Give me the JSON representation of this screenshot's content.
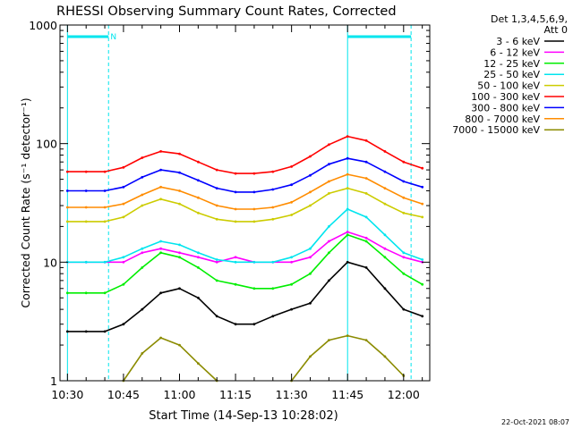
{
  "colors": {
    "background": "#ffffff",
    "axis": "#000000",
    "marker": "#00e5ee"
  },
  "chart_data": {
    "type": "line",
    "title": "RHESSI Observing Summary Count Rates, Corrected",
    "xlabel": "Start Time (14-Sep-13 10:28:02)",
    "ylabel": "Corrected Count Rate (s⁻¹ detector⁻¹)",
    "yscale": "log",
    "ylim": [
      1,
      1000
    ],
    "xlim_minutes": [
      -2,
      97
    ],
    "x_ticks": [
      {
        "label": "10:30",
        "minutes": 0
      },
      {
        "label": "10:45",
        "minutes": 15
      },
      {
        "label": "11:00",
        "minutes": 30
      },
      {
        "label": "11:15",
        "minutes": 45
      },
      {
        "label": "11:30",
        "minutes": 60
      },
      {
        "label": "11:45",
        "minutes": 75
      },
      {
        "label": "12:00",
        "minutes": 90
      }
    ],
    "y_ticks": [
      {
        "label": "1",
        "value": 1
      },
      {
        "label": "10",
        "value": 10
      },
      {
        "label": "100",
        "value": 100
      },
      {
        "label": "1000",
        "value": 1000
      }
    ],
    "legend_header": [
      "Det 1,3,4,5,6,9,",
      "Att 0"
    ],
    "legend_position": "right",
    "annotations": [
      {
        "type": "bar",
        "text": "",
        "x_start": 0,
        "x_end": 11
      },
      {
        "type": "marker",
        "text": "N",
        "x": 11.5
      },
      {
        "type": "bar",
        "text": "",
        "x_start": 75,
        "x_end": 92
      }
    ],
    "markers": {
      "solid_vlines_minutes": [
        0,
        75
      ],
      "dashed_vlines_minutes": [
        11,
        92
      ]
    },
    "time_minutes": [
      0,
      5,
      10,
      15,
      20,
      25,
      30,
      35,
      40,
      45,
      50,
      55,
      60,
      65,
      70,
      75,
      80,
      85,
      90,
      95
    ],
    "series": [
      {
        "name": "3 - 6 keV",
        "color": "#000000",
        "values": [
          2.6,
          2.6,
          2.6,
          3,
          4,
          5.5,
          6,
          5,
          3.5,
          3,
          3,
          3.5,
          4,
          4.5,
          7,
          10,
          9,
          6,
          4,
          3.5
        ]
      },
      {
        "name": "6 - 12 keV",
        "color": "#ff00ff",
        "values": [
          10,
          10,
          10,
          10,
          12,
          13,
          12,
          11,
          10,
          11,
          10,
          10,
          10,
          11,
          15,
          18,
          16,
          13,
          11,
          10
        ]
      },
      {
        "name": "12 - 25 keV",
        "color": "#00ee00",
        "values": [
          5.5,
          5.5,
          5.5,
          6.5,
          9,
          12,
          11,
          9,
          7,
          6.5,
          6,
          6,
          6.5,
          8,
          12,
          17,
          15,
          11,
          8,
          6.5
        ]
      },
      {
        "name": "25 - 50 keV",
        "color": "#00e5ee",
        "values": [
          10,
          10,
          10,
          11,
          13,
          15,
          14,
          12,
          10.5,
          10,
          10,
          10,
          11,
          13,
          20,
          28,
          24,
          17,
          12,
          10.5
        ]
      },
      {
        "name": "50 - 100 keV",
        "color": "#cccc00",
        "values": [
          22,
          22,
          22,
          24,
          30,
          34,
          31,
          26,
          23,
          22,
          22,
          23,
          25,
          30,
          38,
          42,
          38,
          31,
          26,
          24
        ]
      },
      {
        "name": "100 - 300 keV",
        "color": "#ff0000",
        "values": [
          58,
          58,
          58,
          63,
          76,
          86,
          82,
          70,
          60,
          56,
          56,
          58,
          64,
          78,
          98,
          115,
          106,
          86,
          70,
          62
        ]
      },
      {
        "name": "300 - 800 keV",
        "color": "#0000ff",
        "values": [
          40,
          40,
          40,
          43,
          52,
          60,
          57,
          49,
          42,
          39,
          39,
          41,
          45,
          54,
          67,
          75,
          70,
          58,
          48,
          43
        ]
      },
      {
        "name": "800 - 7000 keV",
        "color": "#ff8c00",
        "values": [
          29,
          29,
          29,
          31,
          37,
          43,
          40,
          35,
          30,
          28,
          28,
          29,
          32,
          39,
          48,
          55,
          51,
          42,
          35,
          31
        ]
      },
      {
        "name": "7000 - 15000 keV",
        "color": "#8b8b00",
        "values": [
          null,
          null,
          null,
          1,
          1.7,
          2.3,
          2,
          1.4,
          1,
          null,
          null,
          null,
          1,
          1.6,
          2.2,
          2.4,
          2.2,
          1.6,
          1.1,
          null
        ]
      }
    ]
  },
  "footer": {
    "timestamp": "22-Oct-2021 08:07"
  }
}
